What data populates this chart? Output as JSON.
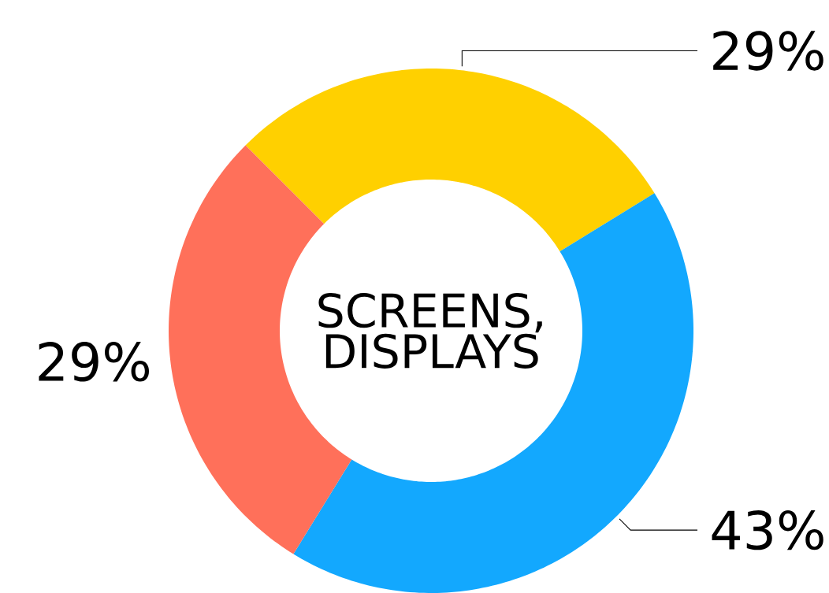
{
  "chart_data": {
    "type": "donut",
    "title": "SCREENS, DISPLAYS",
    "categories": [
      null,
      null,
      null
    ],
    "values": [
      29,
      43,
      29
    ],
    "colors": [
      "#ffd000",
      "#13a8fe",
      "#ff705a"
    ],
    "value_labels": [
      "29%",
      "43%",
      "29%"
    ]
  }
}
